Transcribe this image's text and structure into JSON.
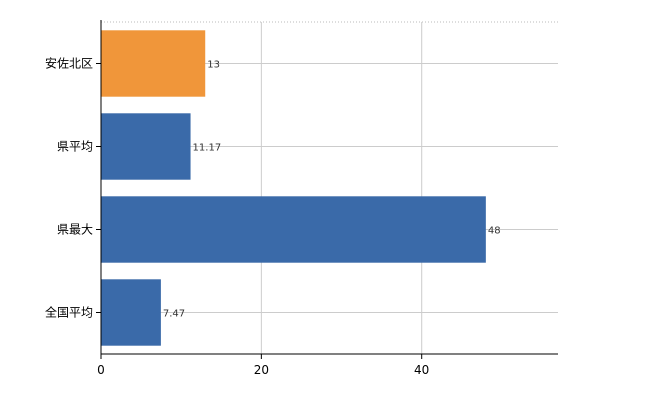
{
  "chart_data": {
    "type": "bar",
    "orientation": "horizontal",
    "title": "",
    "xlabel": "",
    "ylabel": "",
    "categories": [
      "安佐北区",
      "県平均",
      "県最大",
      "全国平均"
    ],
    "values": [
      13,
      11.17,
      48,
      7.47
    ],
    "value_labels": [
      "13",
      "11.17",
      "48",
      "7.47"
    ],
    "colors": [
      "#f0963a",
      "#3a6aa9",
      "#3a6aa9",
      "#3a6aa9"
    ],
    "xlim": [
      0,
      57
    ],
    "xticks": [
      0,
      20,
      40
    ],
    "xtick_labels": [
      "0",
      "20",
      "40"
    ],
    "grid": true,
    "legend": "none"
  }
}
